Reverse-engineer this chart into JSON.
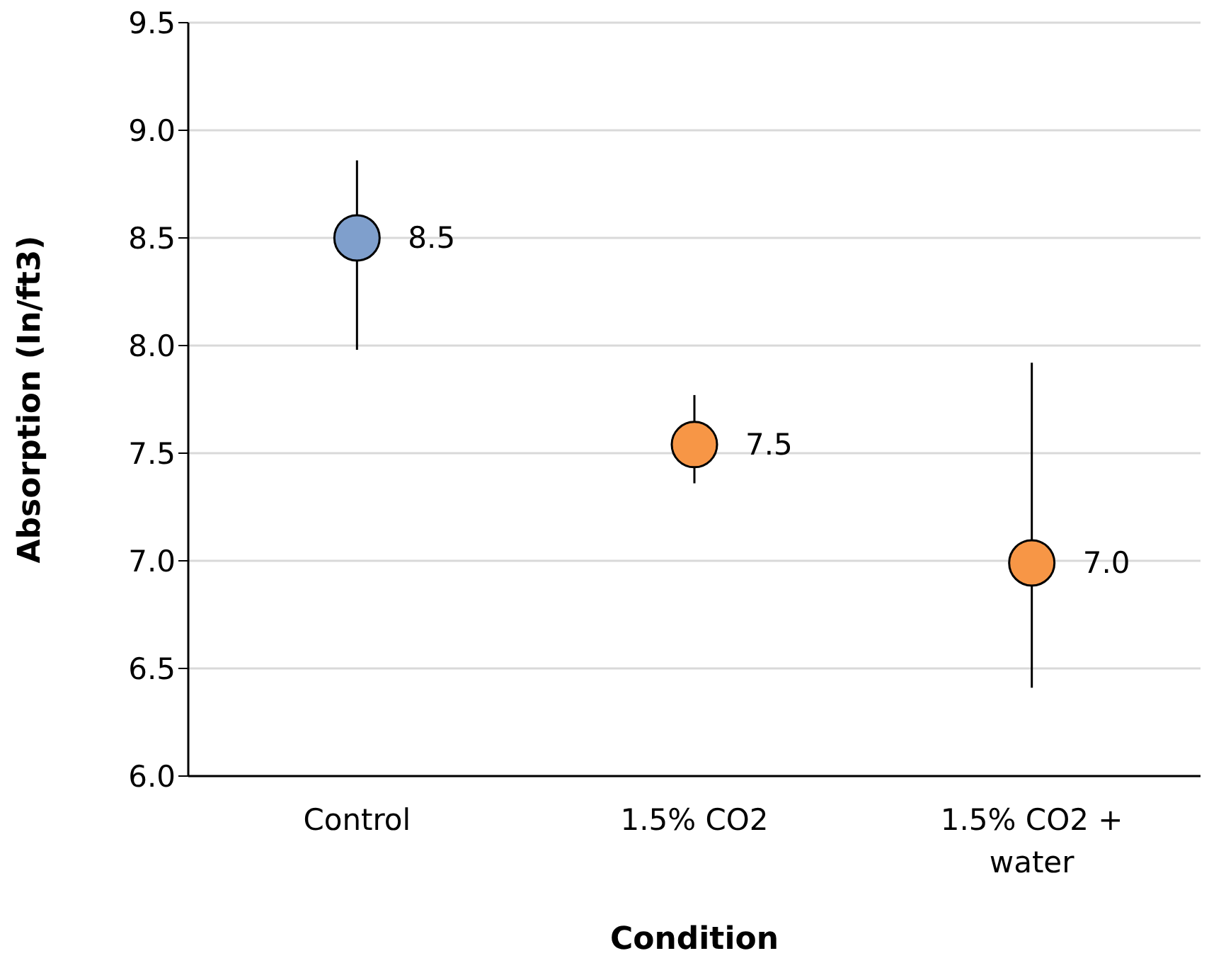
{
  "chart_data": {
    "type": "scatter",
    "xlabel": "Condition",
    "ylabel": "Absorption (In/ft3)",
    "categories": [
      "Control",
      "1.5% CO2",
      "1.5% CO2 + water"
    ],
    "values": [
      8.5,
      7.54,
      6.99
    ],
    "value_labels": [
      "8.5",
      "7.5",
      "7.0"
    ],
    "colors": [
      "#7f9fcc",
      "#f79646",
      "#f79646"
    ],
    "errors": [
      [
        7.98,
        8.86
      ],
      [
        7.36,
        7.77
      ],
      [
        6.41,
        7.92
      ]
    ],
    "ylim": [
      6.0,
      9.5
    ],
    "yticks": [
      {
        "value": 6,
        "label": "6.0"
      },
      {
        "value": 6.5,
        "label": "6.5"
      },
      {
        "value": 7,
        "label": "7.0"
      },
      {
        "value": 7.5,
        "label": "7.5"
      },
      {
        "value": 8,
        "label": "8.0"
      },
      {
        "value": 8.5,
        "label": "8.5"
      },
      {
        "value": 9,
        "label": "9.0"
      },
      {
        "value": 9.5,
        "label": "9.5"
      }
    ],
    "grid": "y",
    "marker": "circle",
    "legend": false
  }
}
